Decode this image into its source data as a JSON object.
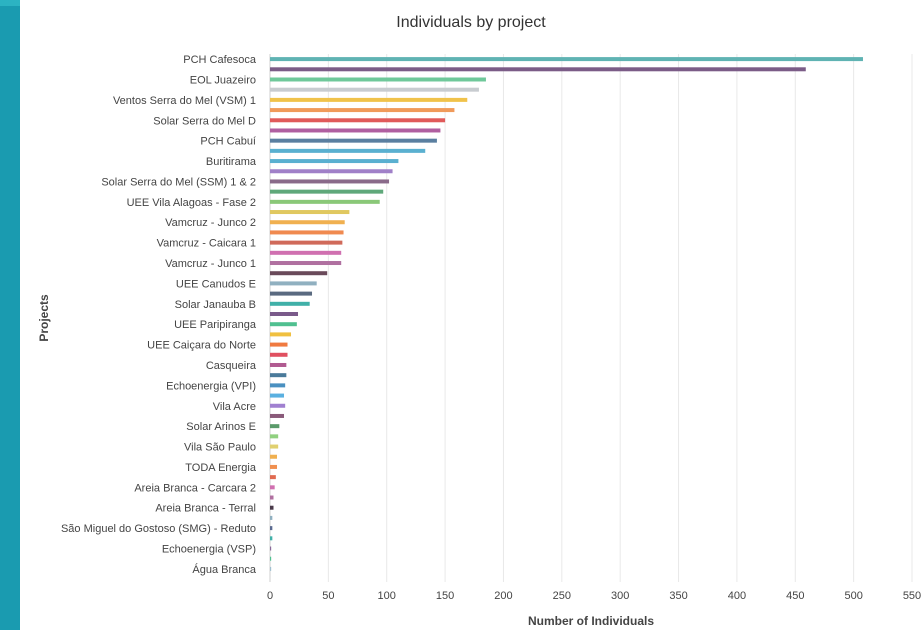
{
  "chart_data": {
    "type": "bar",
    "orientation": "horizontal",
    "title": "Individuals by project",
    "xlabel": "Number of Individuals",
    "ylabel": "Projects",
    "xlim": [
      0,
      550
    ],
    "xticks": [
      0,
      50,
      100,
      150,
      200,
      250,
      300,
      350,
      400,
      450,
      500,
      550
    ],
    "grid": "vertical",
    "legend": "none",
    "categories": [
      {
        "label": "PCH Cafesoca",
        "value": 508,
        "color": "#5fb3b3"
      },
      {
        "label": "",
        "value": 459,
        "color": "#7b5c87"
      },
      {
        "label": "EOL Juazeiro",
        "value": 185,
        "color": "#6fc89a"
      },
      {
        "label": "",
        "value": 179,
        "color": "#c8ccd0"
      },
      {
        "label": "Ventos Serra do Mel (VSM) 1",
        "value": 169,
        "color": "#f0c24a"
      },
      {
        "label": "",
        "value": 158,
        "color": "#f09a5a"
      },
      {
        "label": "Solar Serra do Mel D",
        "value": 150,
        "color": "#e05a5a"
      },
      {
        "label": "",
        "value": 146,
        "color": "#b05fa0"
      },
      {
        "label": "PCH Cabuí",
        "value": 143,
        "color": "#5a7fa0"
      },
      {
        "label": "",
        "value": 133,
        "color": "#5ab0d0"
      },
      {
        "label": "Buritirama",
        "value": 110,
        "color": "#5ab0d0"
      },
      {
        "label": "",
        "value": 105,
        "color": "#a080c8"
      },
      {
        "label": "Solar Serra do Mel (SSM) 1 & 2",
        "value": 102,
        "color": "#8a6a8a"
      },
      {
        "label": "",
        "value": 97,
        "color": "#5fa87a"
      },
      {
        "label": "UEE Vila Alagoas - Fase 2",
        "value": 94,
        "color": "#8ac878"
      },
      {
        "label": "",
        "value": 68,
        "color": "#e0c860"
      },
      {
        "label": "Vamcruz - Junco 2",
        "value": 64,
        "color": "#f0b050"
      },
      {
        "label": "",
        "value": 63,
        "color": "#f08a50"
      },
      {
        "label": "Vamcruz - Caicara 1",
        "value": 62,
        "color": "#d06a5a"
      },
      {
        "label": "",
        "value": 61,
        "color": "#d070b0"
      },
      {
        "label": "Vamcruz - Junco 1",
        "value": 61,
        "color": "#b070a0"
      },
      {
        "label": "",
        "value": 49,
        "color": "#6a4a5a"
      },
      {
        "label": "UEE Canudos E",
        "value": 40,
        "color": "#90b0c0"
      },
      {
        "label": "",
        "value": 36,
        "color": "#5a6a80"
      },
      {
        "label": "Solar Janauba B",
        "value": 34,
        "color": "#40b0a8"
      },
      {
        "label": "",
        "value": 24,
        "color": "#7a5a8a"
      },
      {
        "label": "UEE Paripiranga",
        "value": 23,
        "color": "#50c090"
      },
      {
        "label": "",
        "value": 18,
        "color": "#f0c040"
      },
      {
        "label": "UEE Caiçara do Norte",
        "value": 15,
        "color": "#f07a40"
      },
      {
        "label": "",
        "value": 15,
        "color": "#e05060"
      },
      {
        "label": "Casqueira",
        "value": 14,
        "color": "#b05a90"
      },
      {
        "label": "",
        "value": 14,
        "color": "#4a7a9a"
      },
      {
        "label": "Echoenergia (VPI)",
        "value": 13,
        "color": "#4a90c0"
      },
      {
        "label": "",
        "value": 12,
        "color": "#5ab0e0"
      },
      {
        "label": "Vila Acre",
        "value": 13,
        "color": "#a080d0"
      },
      {
        "label": "",
        "value": 12,
        "color": "#8a5a7a"
      },
      {
        "label": "Solar Arinos E",
        "value": 8,
        "color": "#5a9a6a"
      },
      {
        "label": "",
        "value": 7,
        "color": "#90d080"
      },
      {
        "label": "Vila São Paulo",
        "value": 7,
        "color": "#e0d070"
      },
      {
        "label": "",
        "value": 6,
        "color": "#f0b050"
      },
      {
        "label": "TODA Energia",
        "value": 6,
        "color": "#f09050"
      },
      {
        "label": "",
        "value": 5,
        "color": "#e06a50"
      },
      {
        "label": "Areia Branca - Carcara 2",
        "value": 4,
        "color": "#d070b0"
      },
      {
        "label": "",
        "value": 3,
        "color": "#b070a0"
      },
      {
        "label": "Areia Branca - Terral",
        "value": 3,
        "color": "#4a3a4a"
      },
      {
        "label": "",
        "value": 2,
        "color": "#90b0c0"
      },
      {
        "label": "São Miguel do Gostoso (SMG) - Reduto",
        "value": 2,
        "color": "#5a6a90"
      },
      {
        "label": "",
        "value": 2,
        "color": "#40b0a8"
      },
      {
        "label": "Echoenergia (VSP)",
        "value": 1,
        "color": "#8a6a9a"
      },
      {
        "label": "",
        "value": 1,
        "color": "#50c090"
      },
      {
        "label": "Água Branca",
        "value": 1,
        "color": "#a0c0d0"
      }
    ]
  }
}
